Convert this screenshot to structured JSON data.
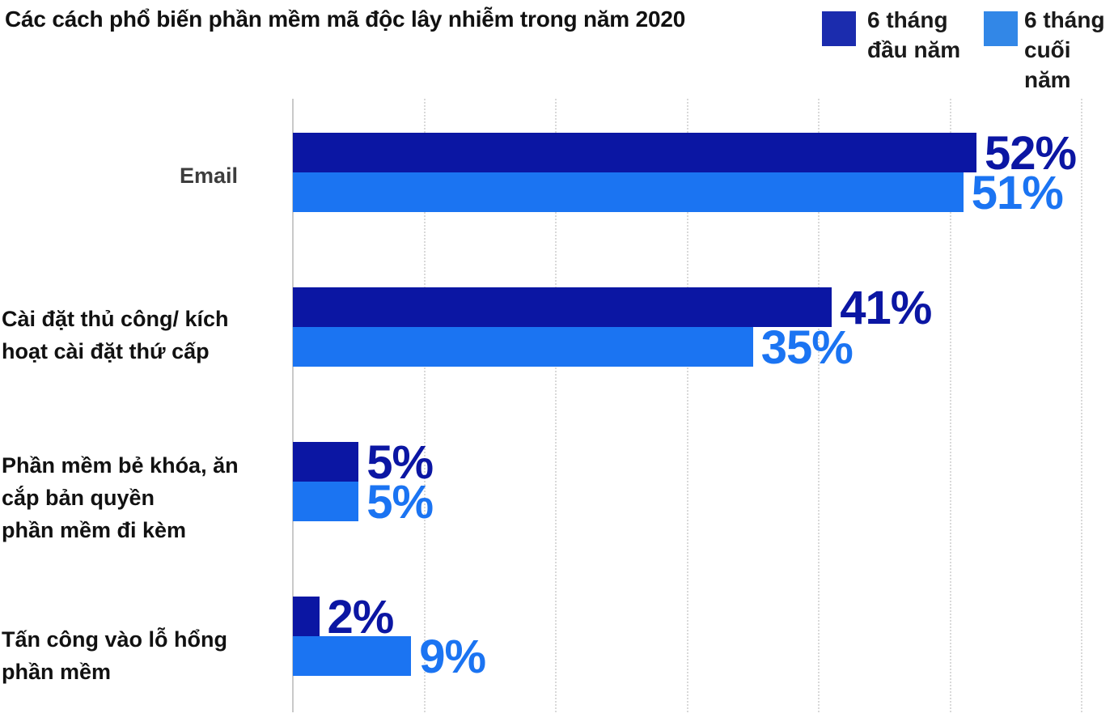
{
  "chart_data": {
    "type": "bar",
    "orientation": "horizontal",
    "title": "Các cách phổ biến phần mềm mã độc lây nhiễm trong năm 2020",
    "categories": [
      "Email",
      "Cài đặt thủ công/ kích hoạt cài đặt thứ cấp",
      "Phần mềm bẻ khóa, ăn cắp bản quyền phần mềm đi kèm",
      "Tấn công vào lỗ hổng phần mềm"
    ],
    "series": [
      {
        "name": "6 tháng đầu năm",
        "color": "#0b16a3",
        "values": [
          52,
          41,
          5,
          2
        ]
      },
      {
        "name": "6 tháng cuối năm",
        "color": "#1b74f2",
        "values": [
          51,
          35,
          5,
          9
        ]
      }
    ],
    "value_suffix": "%",
    "xlim": [
      0,
      62.5
    ],
    "gridline_step_percent": 10,
    "grid": "dotted-vertical",
    "legend_position": "top-right"
  },
  "category_label_lines": [
    [
      "Email"
    ],
    [
      "Cài đặt thủ công/ kích",
      "hoạt cài đặt thứ cấp"
    ],
    [
      "Phần mềm bẻ khóa, ăn",
      "cắp bản quyền",
      "phần mềm đi kèm"
    ],
    [
      "Tấn công vào lỗ hổng",
      "phần mềm"
    ]
  ],
  "category_label_colors": [
    "#3d3d3d",
    "#111111",
    "#111111",
    "#111111"
  ],
  "legend": {
    "items": [
      {
        "label": "6 tháng đầu năm",
        "lines": [
          "6 tháng",
          "đầu năm"
        ],
        "swatch_color": "#1b2cae"
      },
      {
        "label": "6 tháng cuối năm",
        "lines": [
          "6 tháng",
          "cuối",
          "năm"
        ],
        "swatch_color": "#3287e7"
      }
    ],
    "stray_mark": "."
  },
  "colors": {
    "title_text": "#111111",
    "axis_line": "#c9c9c9",
    "gridline": "#d9d9d9",
    "background": "#ffffff"
  }
}
